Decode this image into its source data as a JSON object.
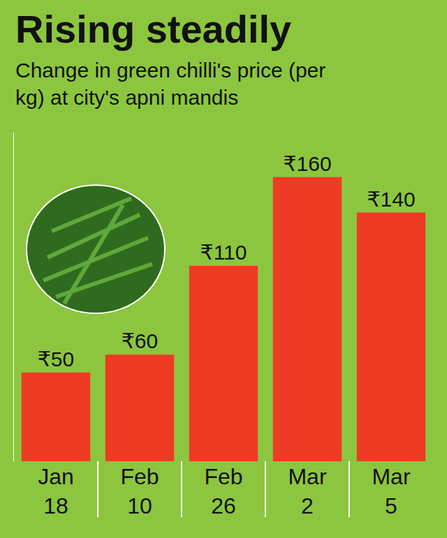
{
  "chart_data": {
    "type": "bar",
    "title": "Rising steadily",
    "subtitle": "Change in green chilli's price (per kg) at city's apni mandis",
    "categories": [
      "Jan 18",
      "Feb 10",
      "Feb 26",
      "Mar 2",
      "Mar 5"
    ],
    "values": [
      50,
      60,
      110,
      160,
      140
    ],
    "value_labels": [
      "₹50",
      "₹60",
      "₹110",
      "₹160",
      "₹140"
    ],
    "color": "#ee3b24",
    "ylim": [
      0,
      185
    ],
    "yticks": [],
    "grid": false,
    "data_labels": true,
    "tick_labels": "x"
  }
}
